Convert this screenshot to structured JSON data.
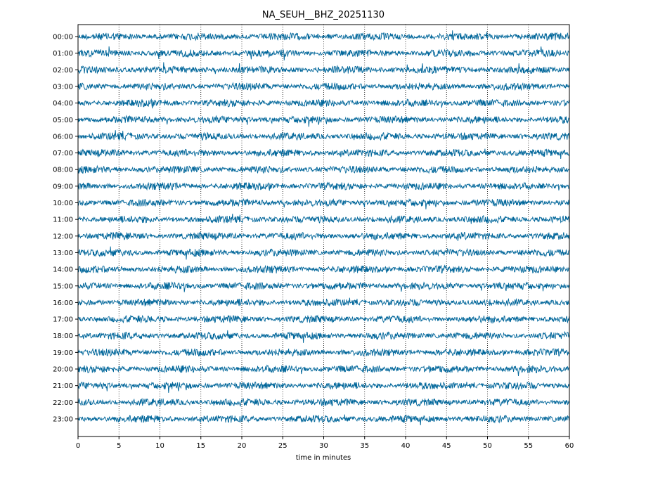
{
  "chart_data": {
    "type": "line",
    "title": "NA_SEUH__BHZ_20251130",
    "xlabel": "time in minutes",
    "ylabel": "",
    "xlim": [
      0,
      60
    ],
    "x_ticks": [
      0,
      5,
      10,
      15,
      20,
      25,
      30,
      35,
      40,
      45,
      50,
      55,
      60
    ],
    "x_tick_labels": [
      "0",
      "5",
      "10",
      "15",
      "20",
      "25",
      "30",
      "35",
      "40",
      "45",
      "50",
      "55",
      "60"
    ],
    "y_tick_labels": [
      "00:00",
      "01:00",
      "02:00",
      "03:00",
      "04:00",
      "05:00",
      "06:00",
      "07:00",
      "08:00",
      "09:00",
      "10:00",
      "11:00",
      "12:00",
      "13:00",
      "14:00",
      "15:00",
      "16:00",
      "17:00",
      "18:00",
      "19:00",
      "20:00",
      "21:00",
      "22:00",
      "23:00"
    ],
    "vertical_grid": "dotted",
    "series_color": "#00669a"
  }
}
